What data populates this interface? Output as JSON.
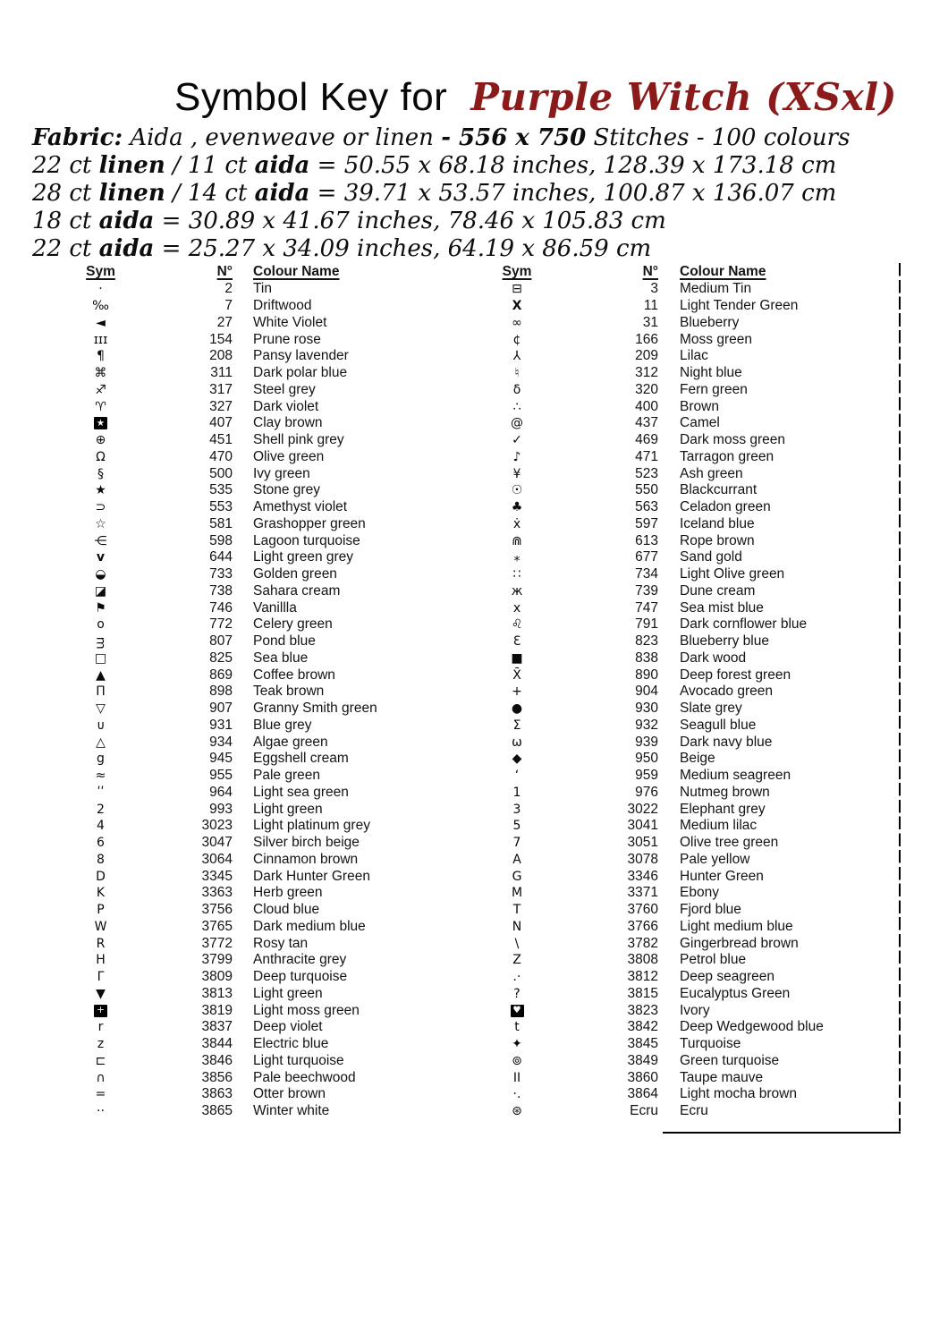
{
  "title": {
    "prefix": "Symbol Key for",
    "name": "Purple Witch (XSxl)"
  },
  "fabric_lines": [
    [
      {
        "t": "Fabric:",
        "b": 1
      },
      {
        "t": "  Aida , evenweave or  linen ",
        "b": 0
      },
      {
        "t": "- 556 x 750",
        "b": 1
      },
      {
        "t": " Stitches - 100 colours",
        "b": 0
      }
    ],
    [
      {
        "t": "22 ct ",
        "b": 0
      },
      {
        "t": "linen",
        "b": 1
      },
      {
        "t": " / 11 ct ",
        "b": 0
      },
      {
        "t": "aida",
        "b": 1
      },
      {
        "t": " = 50.55 x 68.18 inches, 128.39 x 173.18 cm",
        "b": 0
      }
    ],
    [
      {
        "t": "28 ct ",
        "b": 0
      },
      {
        "t": "linen",
        "b": 1
      },
      {
        "t": " / 14 ct ",
        "b": 0
      },
      {
        "t": "aida",
        "b": 1
      },
      {
        "t": " = 39.71 x 53.57 inches, 100.87 x 136.07 cm",
        "b": 0
      }
    ],
    [
      {
        "t": "18 ct ",
        "b": 0
      },
      {
        "t": "aida",
        "b": 1
      },
      {
        "t": "  = 30.89 x 41.67 inches, 78.46 x 105.83 cm",
        "b": 0
      }
    ],
    [
      {
        "t": "22 ct ",
        "b": 0
      },
      {
        "t": "aida",
        "b": 1
      },
      {
        "t": " = 25.27 x 34.09 inches, 64.19 x 86.59 cm",
        "b": 0
      }
    ]
  ],
  "table": {
    "headers": {
      "sym": "Sym",
      "num": "N°",
      "name": "Colour Name"
    },
    "left": [
      {
        "sym": "·",
        "num": "2",
        "name": "Tin"
      },
      {
        "sym": "‰",
        "num": "7",
        "name": "Driftwood"
      },
      {
        "sym": "◄",
        "num": "27",
        "name": "White Violet"
      },
      {
        "sym": "ɪɪɪ",
        "num": "154",
        "name": "Prune rose"
      },
      {
        "sym": "¶",
        "num": "208",
        "name": "Pansy lavender"
      },
      {
        "sym": "⌘",
        "num": "311",
        "name": "Dark polar blue"
      },
      {
        "sym": "♐",
        "num": "317",
        "name": "Steel grey"
      },
      {
        "sym": "♈",
        "num": "327",
        "name": "Dark violet"
      },
      {
        "sym": "★",
        "inv": true,
        "num": "407",
        "name": "Clay brown"
      },
      {
        "sym": "⊕",
        "num": "451",
        "name": "Shell pink grey"
      },
      {
        "sym": "Ω",
        "num": "470",
        "name": "Olive green"
      },
      {
        "sym": "§",
        "num": "500",
        "name": "Ivy green"
      },
      {
        "sym": "★",
        "num": "535",
        "name": "Stone grey"
      },
      {
        "sym": "⊃",
        "num": "553",
        "name": "Amethyst violet"
      },
      {
        "sym": "☆",
        "num": "581",
        "name": "Grashopper green"
      },
      {
        "sym": "⋲",
        "num": "598",
        "name": "Lagoon turquoise"
      },
      {
        "sym": "v",
        "b": true,
        "num": "644",
        "name": "Light green grey"
      },
      {
        "sym": "◒",
        "num": "733",
        "name": "Golden green"
      },
      {
        "sym": "◪",
        "num": "738",
        "name": "Sahara cream"
      },
      {
        "sym": "⚑",
        "num": "746",
        "name": "Vanillla"
      },
      {
        "sym": "o",
        "num": "772",
        "name": "Celery green"
      },
      {
        "sym": "ᴟ",
        "num": "807",
        "name": "Pond blue"
      },
      {
        "sym": "□",
        "num": "825",
        "name": "Sea blue"
      },
      {
        "sym": "▲",
        "num": "869",
        "name": "Coffee brown"
      },
      {
        "sym": "Π",
        "num": "898",
        "name": "Teak brown"
      },
      {
        "sym": "▽",
        "num": "907",
        "name": "Granny Smith green"
      },
      {
        "sym": "ᴜ",
        "num": "931",
        "name": "Blue grey"
      },
      {
        "sym": "△",
        "num": "934",
        "name": "Algae green"
      },
      {
        "sym": "g",
        "num": "945",
        "name": "Eggshell cream"
      },
      {
        "sym": "≈",
        "num": "955",
        "name": "Pale green"
      },
      {
        "sym": "ʹʹ",
        "num": "964",
        "name": "Light sea green"
      },
      {
        "sym": "2",
        "num": "993",
        "name": "Light green"
      },
      {
        "sym": "4",
        "num": "3023",
        "name": "Light platinum grey"
      },
      {
        "sym": "6",
        "num": "3047",
        "name": "Silver birch beige"
      },
      {
        "sym": "8",
        "num": "3064",
        "name": "Cinnamon brown"
      },
      {
        "sym": "D",
        "num": "3345",
        "name": "Dark Hunter Green"
      },
      {
        "sym": "K",
        "num": "3363",
        "name": "Herb green"
      },
      {
        "sym": "P",
        "num": "3756",
        "name": "Cloud blue"
      },
      {
        "sym": "W",
        "num": "3765",
        "name": "Dark medium blue"
      },
      {
        "sym": "R",
        "num": "3772",
        "name": "Rosy tan"
      },
      {
        "sym": "H",
        "num": "3799",
        "name": "Anthracite grey"
      },
      {
        "sym": "Γ",
        "num": "3809",
        "name": "Deep turquoise"
      },
      {
        "sym": "▼",
        "num": "3813",
        "name": "Light green"
      },
      {
        "sym": "+",
        "inv": true,
        "num": "3819",
        "name": "Light moss green"
      },
      {
        "sym": "r",
        "num": "3837",
        "name": "Deep violet"
      },
      {
        "sym": "z",
        "num": "3844",
        "name": "Electric blue"
      },
      {
        "sym": "⊏",
        "num": "3846",
        "name": "Light turquoise"
      },
      {
        "sym": "∩",
        "num": "3856",
        "name": "Pale beechwood"
      },
      {
        "sym": "=",
        "num": "3863",
        "name": "Otter brown"
      },
      {
        "sym": "··",
        "num": "3865",
        "name": "Winter white"
      }
    ],
    "right": [
      {
        "sym": "⊟",
        "num": "3",
        "name": "Medium Tin"
      },
      {
        "sym": "X",
        "b": true,
        "num": "11",
        "name": "Light Tender Green"
      },
      {
        "sym": "∞",
        "num": "31",
        "name": "Blueberry"
      },
      {
        "sym": "¢",
        "num": "166",
        "name": "Moss green"
      },
      {
        "sym": "⅄",
        "num": "209",
        "name": "Lilac"
      },
      {
        "sym": "♮",
        "num": "312",
        "name": "Night blue"
      },
      {
        "sym": "δ",
        "num": "320",
        "name": "Fern green"
      },
      {
        "sym": "∴",
        "num": "400",
        "name": "Brown"
      },
      {
        "sym": "@",
        "num": "437",
        "name": "Camel"
      },
      {
        "sym": "✓",
        "num": "469",
        "name": "Dark moss green"
      },
      {
        "sym": "♪",
        "num": "471",
        "name": "Tarragon green"
      },
      {
        "sym": "¥",
        "num": "523",
        "name": "Ash green"
      },
      {
        "sym": "☉",
        "num": "550",
        "name": "Blackcurrant"
      },
      {
        "sym": "♣",
        "num": "563",
        "name": "Celadon green"
      },
      {
        "sym": "ẋ",
        "num": "597",
        "name": "Iceland blue"
      },
      {
        "sym": "⋒",
        "num": "613",
        "name": "Rope brown"
      },
      {
        "sym": "⁎",
        "num": "677",
        "name": "Sand gold"
      },
      {
        "sym": "∷",
        "num": "734",
        "name": "Light Olive green"
      },
      {
        "sym": "ж",
        "num": "739",
        "name": "Dune cream"
      },
      {
        "sym": "x",
        "num": "747",
        "name": "Sea mist blue"
      },
      {
        "sym": "♌",
        "num": "791",
        "name": "Dark cornflower blue"
      },
      {
        "sym": "Ɛ",
        "num": "823",
        "name": "Blueberry blue"
      },
      {
        "sym": "■",
        "num": "838",
        "name": "Dark wood"
      },
      {
        "sym": "X̄",
        "num": "890",
        "name": "Deep forest green"
      },
      {
        "sym": "+",
        "num": "904",
        "name": "Avocado green"
      },
      {
        "sym": "●",
        "num": "930",
        "name": "Slate grey"
      },
      {
        "sym": "Σ",
        "num": "932",
        "name": "Seagull blue"
      },
      {
        "sym": "ω",
        "num": "939",
        "name": "Dark navy blue"
      },
      {
        "sym": "◆",
        "num": "950",
        "name": "Beige"
      },
      {
        "sym": "‘",
        "num": "959",
        "name": "Medium seagreen"
      },
      {
        "sym": "1",
        "num": "976",
        "name": "Nutmeg brown"
      },
      {
        "sym": "3",
        "num": "3022",
        "name": "Elephant grey"
      },
      {
        "sym": "5",
        "num": "3041",
        "name": "Medium lilac"
      },
      {
        "sym": "7",
        "num": "3051",
        "name": "Olive tree green"
      },
      {
        "sym": "A",
        "num": "3078",
        "name": "Pale yellow"
      },
      {
        "sym": "G",
        "num": "3346",
        "name": "Hunter Green"
      },
      {
        "sym": "M",
        "num": "3371",
        "name": "Ebony"
      },
      {
        "sym": "T",
        "num": "3760",
        "name": "Fjord blue"
      },
      {
        "sym": "N",
        "num": "3766",
        "name": "Light medium blue"
      },
      {
        "sym": "\\",
        "num": "3782",
        "name": "Gingerbread brown"
      },
      {
        "sym": "Z",
        "num": "3808",
        "name": "Petrol blue"
      },
      {
        "sym": ".·",
        "num": "3812",
        "name": "Deep seagreen"
      },
      {
        "sym": "?",
        "num": "3815",
        "name": "Eucalyptus Green"
      },
      {
        "sym": "♥",
        "inv": true,
        "num": "3823",
        "name": "Ivory"
      },
      {
        "sym": "t",
        "num": "3842",
        "name": "Deep Wedgewood blue"
      },
      {
        "sym": "✦",
        "num": "3845",
        "name": "Turquoise"
      },
      {
        "sym": "⊚",
        "num": "3849",
        "name": "Green turquoise"
      },
      {
        "sym": "II",
        "num": "3860",
        "name": "Taupe mauve"
      },
      {
        "sym": "·.",
        "num": "3864",
        "name": "Light mocha brown"
      },
      {
        "sym": "⊛",
        "num": "Ecru",
        "name": "Ecru"
      }
    ]
  },
  "colors": {
    "accent_red": "#8b1b1b",
    "ink": "#141414"
  }
}
